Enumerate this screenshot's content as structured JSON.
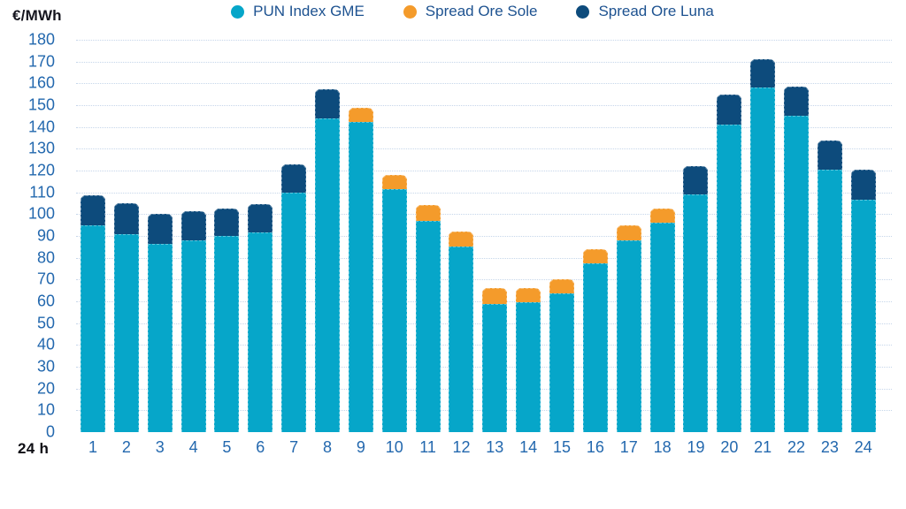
{
  "chart_data": {
    "type": "bar",
    "stacked": true,
    "title": "",
    "ylabel": "€/MWh",
    "xlabel": "24 h",
    "ylim": [
      0,
      180
    ],
    "ytick_step": 10,
    "grid": "horizontal-dotted",
    "legend_position": "top-center",
    "categories": [
      "1",
      "2",
      "3",
      "4",
      "5",
      "6",
      "7",
      "8",
      "9",
      "10",
      "11",
      "12",
      "13",
      "14",
      "15",
      "16",
      "17",
      "18",
      "19",
      "20",
      "21",
      "22",
      "23",
      "24"
    ],
    "series": [
      {
        "name": "PUN Index GME",
        "color": "#06a6c9",
        "values": [
          95,
          91,
          86.5,
          88,
          90,
          91.5,
          110,
          144,
          142.5,
          111.5,
          97,
          85,
          59,
          59.5,
          63.5,
          77.5,
          88,
          96,
          109,
          141,
          158,
          145,
          120.5,
          106.5
        ]
      },
      {
        "name": "Spread Ore Sole",
        "color": "#f49b2b",
        "values": [
          0,
          0,
          0,
          0,
          0,
          0,
          0,
          0,
          6.5,
          6.5,
          7,
          7,
          7,
          6.5,
          6.5,
          6.5,
          7,
          6.5,
          0,
          0,
          0,
          0,
          0,
          0
        ]
      },
      {
        "name": "Spread Ore Luna",
        "color": "#0d4b7c",
        "values": [
          13.5,
          14,
          13.5,
          13.5,
          12.5,
          13,
          13,
          13.5,
          0,
          0,
          0,
          0,
          0,
          0,
          0,
          0,
          0,
          0,
          13,
          14,
          13,
          13.5,
          13.5,
          14
        ]
      }
    ],
    "colors": {
      "axis_text": "#2368ae",
      "legend_text": "#1d5290",
      "gridline": "#c6d6ea",
      "unit_label_text": "#16161f",
      "x_unit_label_text": "#0e0e14",
      "background": "#ffffff"
    }
  }
}
